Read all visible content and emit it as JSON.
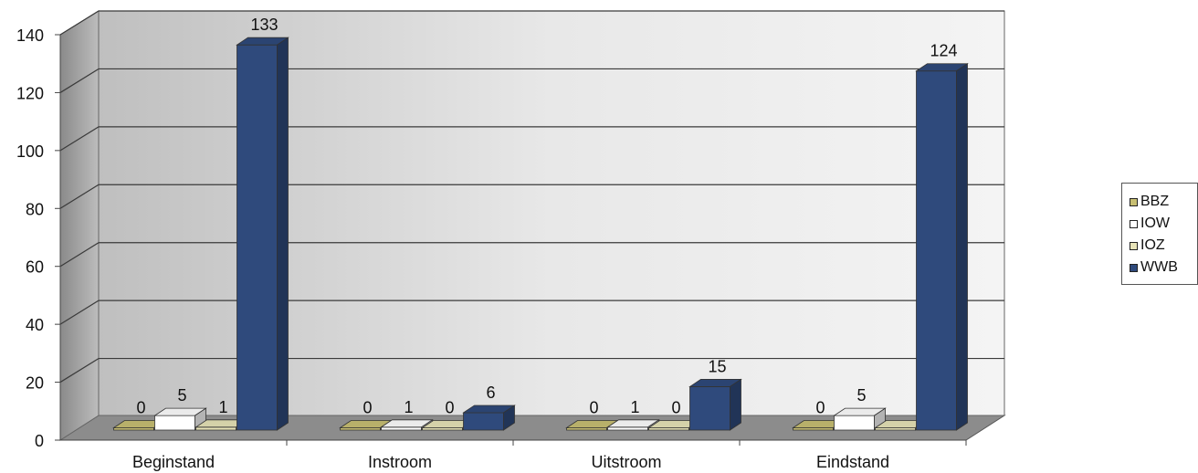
{
  "chart_data": {
    "type": "bar",
    "categories": [
      "Beginstand",
      "Instroom",
      "Uitstroom",
      "Eindstand"
    ],
    "series": [
      {
        "name": "BBZ",
        "values": [
          0,
          0,
          0,
          0
        ],
        "color": "#c8bf73",
        "data_labels": [
          "0",
          "0",
          "0",
          "0"
        ]
      },
      {
        "name": "IOW",
        "values": [
          5,
          1,
          1,
          5
        ],
        "color": "#ffffff",
        "data_labels": [
          "5",
          "1",
          "1",
          "5"
        ]
      },
      {
        "name": "IOZ",
        "values": [
          1,
          0,
          0,
          0
        ],
        "color": "#e8e4b8",
        "data_labels": [
          "1",
          "0",
          "0",
          ""
        ]
      },
      {
        "name": "WWB",
        "values": [
          133,
          6,
          15,
          124
        ],
        "color": "#2f4a7c",
        "data_labels": [
          "133",
          "6",
          "15",
          "124"
        ]
      }
    ],
    "y_ticks": [
      "0",
      "20",
      "40",
      "60",
      "80",
      "100",
      "120",
      "140"
    ],
    "ylim": [
      0,
      140
    ],
    "grid": true,
    "legend_position": "right",
    "three_d": true
  }
}
